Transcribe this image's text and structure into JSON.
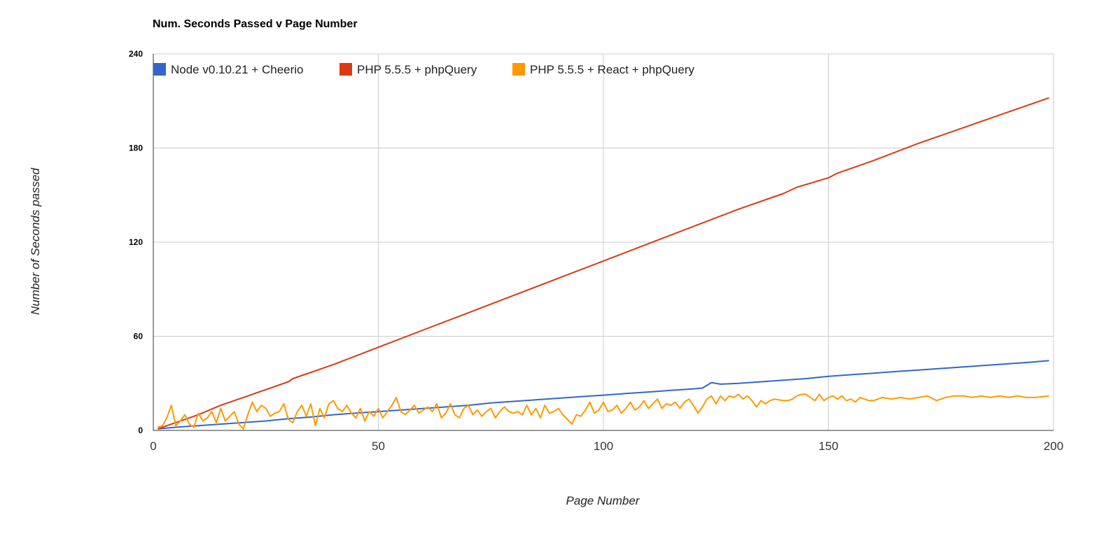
{
  "chart_data": {
    "type": "line",
    "title": "Num. Seconds Passed v Page Number",
    "xlabel": "Page Number",
    "ylabel": "Number of Seconds passed",
    "xlim": [
      0,
      200
    ],
    "ylim": [
      0,
      240
    ],
    "x_ticks": [
      "0",
      "50",
      "100",
      "150",
      "200"
    ],
    "y_ticks": [
      "0",
      "60",
      "120",
      "180",
      "240"
    ],
    "grid": true,
    "legend_position": "top-left",
    "series": [
      {
        "name": "Node v0.10.21 + Cheerio",
        "color": "#3366cc",
        "points": [
          [
            1,
            1
          ],
          [
            5,
            2
          ],
          [
            10,
            3
          ],
          [
            15,
            4
          ],
          [
            20,
            5
          ],
          [
            25,
            6
          ],
          [
            30,
            7.5
          ],
          [
            35,
            8.5
          ],
          [
            40,
            10
          ],
          [
            45,
            11
          ],
          [
            50,
            12
          ],
          [
            55,
            13
          ],
          [
            60,
            14
          ],
          [
            65,
            15
          ],
          [
            70,
            16
          ],
          [
            75,
            17.5
          ],
          [
            80,
            18.5
          ],
          [
            85,
            19.5
          ],
          [
            90,
            20.5
          ],
          [
            95,
            21.5
          ],
          [
            100,
            22.5
          ],
          [
            105,
            23.5
          ],
          [
            110,
            24.5
          ],
          [
            115,
            25.5
          ],
          [
            120,
            26.5
          ],
          [
            122,
            27
          ],
          [
            124,
            30.5
          ],
          [
            126,
            29.5
          ],
          [
            130,
            30
          ],
          [
            135,
            31
          ],
          [
            140,
            32
          ],
          [
            145,
            33
          ],
          [
            150,
            34.5
          ],
          [
            155,
            35.5
          ],
          [
            160,
            36.5
          ],
          [
            165,
            37.5
          ],
          [
            170,
            38.5
          ],
          [
            175,
            39.5
          ],
          [
            180,
            40.5
          ],
          [
            185,
            41.5
          ],
          [
            190,
            42.5
          ],
          [
            195,
            43.5
          ],
          [
            199,
            44.5
          ]
        ]
      },
      {
        "name": "PHP 5.5.5 + phpQuery",
        "color": "#dc3912",
        "points": [
          [
            1,
            1
          ],
          [
            10,
            10
          ],
          [
            15,
            16
          ],
          [
            20,
            21
          ],
          [
            25,
            26
          ],
          [
            30,
            31
          ],
          [
            31,
            33
          ],
          [
            40,
            42
          ],
          [
            50,
            53
          ],
          [
            60,
            64
          ],
          [
            70,
            75
          ],
          [
            80,
            86
          ],
          [
            90,
            97
          ],
          [
            100,
            108
          ],
          [
            110,
            119
          ],
          [
            120,
            130
          ],
          [
            130,
            141
          ],
          [
            140,
            151
          ],
          [
            143,
            155
          ],
          [
            150,
            161
          ],
          [
            152,
            164
          ],
          [
            160,
            172
          ],
          [
            170,
            183
          ],
          [
            180,
            193
          ],
          [
            190,
            203
          ],
          [
            199,
            212
          ]
        ]
      },
      {
        "name": "PHP 5.5.5 + React + phpQuery",
        "color": "#ff9900",
        "points": [
          [
            1,
            2
          ],
          [
            2,
            3
          ],
          [
            3,
            8
          ],
          [
            4,
            16
          ],
          [
            5,
            3
          ],
          [
            6,
            6
          ],
          [
            7,
            10
          ],
          [
            8,
            4
          ],
          [
            9,
            2
          ],
          [
            10,
            11
          ],
          [
            11,
            6
          ],
          [
            12,
            8
          ],
          [
            13,
            12
          ],
          [
            14,
            5
          ],
          [
            15,
            14
          ],
          [
            16,
            6
          ],
          [
            17,
            9
          ],
          [
            18,
            12
          ],
          [
            19,
            4
          ],
          [
            20,
            1
          ],
          [
            21,
            10
          ],
          [
            22,
            18
          ],
          [
            23,
            12
          ],
          [
            24,
            16
          ],
          [
            25,
            14
          ],
          [
            26,
            9
          ],
          [
            27,
            11
          ],
          [
            28,
            12
          ],
          [
            29,
            17
          ],
          [
            30,
            7
          ],
          [
            31,
            5
          ],
          [
            32,
            12
          ],
          [
            33,
            16
          ],
          [
            34,
            9
          ],
          [
            35,
            17
          ],
          [
            36,
            3
          ],
          [
            37,
            14
          ],
          [
            38,
            8
          ],
          [
            39,
            17
          ],
          [
            40,
            19
          ],
          [
            41,
            14
          ],
          [
            42,
            12
          ],
          [
            43,
            16
          ],
          [
            44,
            11
          ],
          [
            45,
            8
          ],
          [
            46,
            14
          ],
          [
            47,
            6
          ],
          [
            48,
            12
          ],
          [
            49,
            9
          ],
          [
            50,
            14
          ],
          [
            51,
            8
          ],
          [
            52,
            12
          ],
          [
            53,
            16
          ],
          [
            54,
            21
          ],
          [
            55,
            12
          ],
          [
            56,
            10
          ],
          [
            57,
            13
          ],
          [
            58,
            16
          ],
          [
            59,
            11
          ],
          [
            60,
            13
          ],
          [
            61,
            15
          ],
          [
            62,
            12
          ],
          [
            63,
            17
          ],
          [
            64,
            8
          ],
          [
            65,
            11
          ],
          [
            66,
            17
          ],
          [
            67,
            10
          ],
          [
            68,
            8
          ],
          [
            69,
            14
          ],
          [
            70,
            16
          ],
          [
            71,
            10
          ],
          [
            72,
            13
          ],
          [
            73,
            9
          ],
          [
            74,
            12
          ],
          [
            75,
            14
          ],
          [
            76,
            8
          ],
          [
            77,
            12
          ],
          [
            78,
            15
          ],
          [
            79,
            12
          ],
          [
            80,
            11
          ],
          [
            81,
            12
          ],
          [
            82,
            10
          ],
          [
            83,
            16
          ],
          [
            84,
            10
          ],
          [
            85,
            14
          ],
          [
            86,
            8
          ],
          [
            87,
            16
          ],
          [
            88,
            11
          ],
          [
            89,
            12
          ],
          [
            90,
            14
          ],
          [
            91,
            10
          ],
          [
            92,
            7
          ],
          [
            93,
            4
          ],
          [
            94,
            10
          ],
          [
            95,
            9
          ],
          [
            96,
            13
          ],
          [
            97,
            18
          ],
          [
            98,
            11
          ],
          [
            99,
            13
          ],
          [
            100,
            18
          ],
          [
            101,
            12
          ],
          [
            102,
            13
          ],
          [
            103,
            16
          ],
          [
            104,
            11
          ],
          [
            105,
            14
          ],
          [
            106,
            18
          ],
          [
            107,
            13
          ],
          [
            108,
            15
          ],
          [
            109,
            19
          ],
          [
            110,
            14
          ],
          [
            111,
            17
          ],
          [
            112,
            20
          ],
          [
            113,
            14
          ],
          [
            114,
            17
          ],
          [
            115,
            16
          ],
          [
            116,
            18
          ],
          [
            117,
            14
          ],
          [
            118,
            18
          ],
          [
            119,
            20
          ],
          [
            120,
            16
          ],
          [
            121,
            11
          ],
          [
            122,
            15
          ],
          [
            123,
            20
          ],
          [
            124,
            22
          ],
          [
            125,
            17
          ],
          [
            126,
            22
          ],
          [
            127,
            19
          ],
          [
            128,
            22
          ],
          [
            129,
            21
          ],
          [
            130,
            23
          ],
          [
            131,
            20
          ],
          [
            132,
            22
          ],
          [
            133,
            19
          ],
          [
            134,
            15
          ],
          [
            135,
            19
          ],
          [
            136,
            17
          ],
          [
            137,
            19
          ],
          [
            138,
            20
          ],
          [
            140,
            19
          ],
          [
            141,
            19
          ],
          [
            142,
            20
          ],
          [
            143,
            22
          ],
          [
            144,
            23
          ],
          [
            145,
            23
          ],
          [
            146,
            21
          ],
          [
            147,
            19
          ],
          [
            148,
            23
          ],
          [
            149,
            19
          ],
          [
            150,
            21
          ],
          [
            151,
            22
          ],
          [
            152,
            20
          ],
          [
            153,
            22
          ],
          [
            154,
            19
          ],
          [
            155,
            20
          ],
          [
            156,
            18
          ],
          [
            157,
            21
          ],
          [
            158,
            20
          ],
          [
            159,
            19
          ],
          [
            160,
            19
          ],
          [
            162,
            21
          ],
          [
            164,
            20
          ],
          [
            166,
            21
          ],
          [
            168,
            20
          ],
          [
            170,
            21
          ],
          [
            172,
            22
          ],
          [
            174,
            19
          ],
          [
            176,
            21
          ],
          [
            178,
            22
          ],
          [
            180,
            22
          ],
          [
            182,
            21
          ],
          [
            184,
            22
          ],
          [
            186,
            21
          ],
          [
            188,
            22
          ],
          [
            190,
            21
          ],
          [
            192,
            22
          ],
          [
            194,
            21
          ],
          [
            196,
            21
          ],
          [
            199,
            22
          ]
        ]
      }
    ]
  }
}
